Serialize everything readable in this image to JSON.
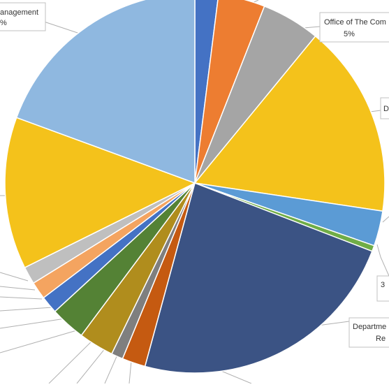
{
  "chart_data": {
    "type": "pie",
    "title": "",
    "legend": "none",
    "start_angle_deg": 0,
    "direction": "clockwise",
    "slices": [
      {
        "label": "",
        "percent": 2,
        "color": "#4472C4"
      },
      {
        "label": "",
        "percent": 4,
        "color": "#ED7D31"
      },
      {
        "label": "Office of The Com",
        "percent": 5,
        "percent_label": "5%",
        "color": "#A5A5A5"
      },
      {
        "label": "D",
        "percent": 16.5,
        "color": "#F4C21B"
      },
      {
        "label": "",
        "percent": 3,
        "color": "#5B9BD5"
      },
      {
        "label": "3",
        "percent": 0.5,
        "color": "#70AD47"
      },
      {
        "label": "Departme",
        "label_line2": "Re",
        "percent": 23.5,
        "color": "#3B5384"
      },
      {
        "label": "",
        "percent": 2,
        "color": "#C55A11"
      },
      {
        "label": "",
        "percent": 1,
        "color": "#7F7F7F"
      },
      {
        "label": "",
        "percent": 3,
        "color": "#B08D1D"
      },
      {
        "label": "",
        "percent": 3,
        "color": "#548235"
      },
      {
        "label": "",
        "percent": 1.5,
        "color": "#4472C4"
      },
      {
        "label": "",
        "percent": 1.5,
        "color": "#F4A460"
      },
      {
        "label": "",
        "percent": 1.5,
        "color": "#BFBFBF"
      },
      {
        "label": "",
        "percent": 13,
        "color": "#F4C21B"
      },
      {
        "label": "anagement",
        "percent_label": "%",
        "percent": 19.5,
        "color": "#8FB8E0"
      }
    ]
  }
}
